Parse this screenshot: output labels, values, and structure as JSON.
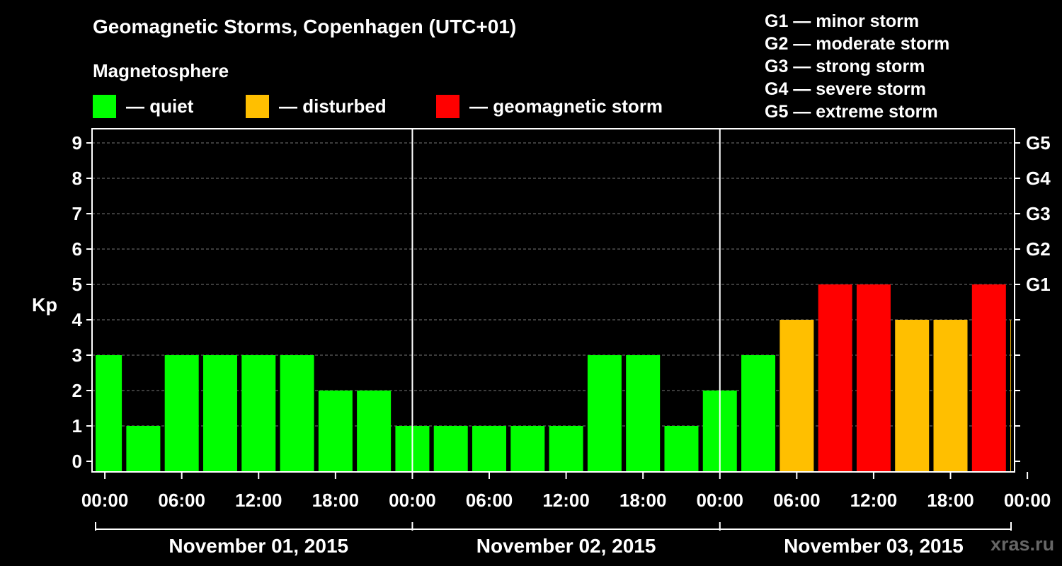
{
  "header": {
    "title": "Geomagnetic Storms, Copenhagen (UTC+01)",
    "subtitle": "Magnetosphere"
  },
  "legend": [
    {
      "label": "— quiet",
      "color": "#00ff00"
    },
    {
      "label": "— disturbed",
      "color": "#ffbf00"
    },
    {
      "label": "— geomagnetic storm",
      "color": "#ff0000"
    }
  ],
  "storm_scale": [
    "G1 — minor storm",
    "G2 — moderate storm",
    "G3 — strong storm",
    "G4 — severe storm",
    "G5 — extreme storm"
  ],
  "watermark": "xras.ru",
  "chart_data": {
    "type": "bar",
    "ylabel": "Kp",
    "ylim": [
      0,
      9
    ],
    "yticks": [
      "0",
      "1",
      "2",
      "3",
      "4",
      "5",
      "6",
      "7",
      "8",
      "9"
    ],
    "right_axis": [
      {
        "kp": 5,
        "label": "G1"
      },
      {
        "kp": 6,
        "label": "G2"
      },
      {
        "kp": 7,
        "label": "G3"
      },
      {
        "kp": 8,
        "label": "G4"
      },
      {
        "kp": 9,
        "label": "G5"
      }
    ],
    "xtick_labels": [
      "00:00",
      "06:00",
      "12:00",
      "18:00",
      "00:00",
      "06:00",
      "12:00",
      "18:00",
      "00:00",
      "06:00",
      "12:00",
      "18:00",
      "00:00"
    ],
    "days": [
      "November 01, 2015",
      "November 02, 2015",
      "November 03, 2015"
    ],
    "bar_interval_hours": 3,
    "x_range_hours": [
      -1,
      71
    ],
    "series": [
      {
        "values": [
          3,
          1,
          3,
          3,
          3,
          3,
          2,
          2,
          1,
          1,
          1,
          1,
          1,
          3,
          3,
          1,
          2,
          3,
          4,
          5,
          5,
          4,
          4,
          5,
          4
        ],
        "states": [
          "quiet",
          "quiet",
          "quiet",
          "quiet",
          "quiet",
          "quiet",
          "quiet",
          "quiet",
          "quiet",
          "quiet",
          "quiet",
          "quiet",
          "quiet",
          "quiet",
          "quiet",
          "quiet",
          "quiet",
          "quiet",
          "disturbed",
          "storm",
          "storm",
          "disturbed",
          "disturbed",
          "storm",
          "disturbed"
        ]
      }
    ],
    "colors": {
      "quiet": "#00ff00",
      "disturbed": "#ffbf00",
      "storm": "#ff0000"
    },
    "grid": true
  }
}
